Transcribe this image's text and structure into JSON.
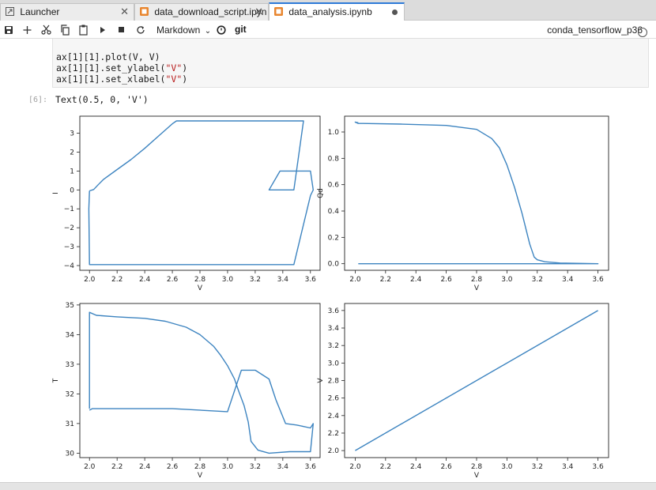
{
  "tabs": [
    {
      "label": "Launcher",
      "icon": "launcher-icon",
      "active": false
    },
    {
      "label": "data_download_script.ipyn",
      "icon": "notebook-icon",
      "active": false
    },
    {
      "label": "data_analysis.ipynb",
      "icon": "notebook-icon",
      "active": true
    }
  ],
  "toolbar": {
    "cell_type": "Markdown",
    "git_label": "git",
    "kernel": "conda_tensorflow_p36"
  },
  "code_lines": [
    {
      "pre": "ax[1][1].plot(V, V)",
      "str": "",
      "post": ""
    },
    {
      "pre": "ax[1][1].set_ylabel(",
      "str": "\"V\"",
      "post": ")"
    },
    {
      "pre": "ax[1][1].set_xlabel(",
      "str": "\"V\"",
      "post": ")"
    }
  ],
  "output": {
    "prompt": "[6]:",
    "text": "Text(0.5, 0, 'V')"
  },
  "colors": {
    "line": "#3d84c0",
    "accent": "#2e7ad8",
    "notebook_icon": "#e8862f"
  },
  "chart_data": [
    {
      "type": "line",
      "xlabel": "V",
      "ylabel": "I",
      "xlim": [
        1.93,
        3.67
      ],
      "ylim": [
        -4.25,
        3.9
      ],
      "xticks": [
        2.0,
        2.2,
        2.4,
        2.6,
        2.8,
        3.0,
        3.2,
        3.4,
        3.6
      ],
      "yticks": [
        -4,
        -3,
        -2,
        -1,
        0,
        1,
        2,
        3
      ],
      "series": [
        {
          "x": [
            2.0,
            2.03,
            2.06,
            2.1,
            2.2,
            2.3,
            2.4,
            2.5,
            2.6,
            2.63,
            3.55,
            3.48,
            3.3,
            3.38,
            3.6,
            3.62,
            3.6,
            3.48,
            2.0,
            1.995,
            2.0
          ],
          "y": [
            -0.05,
            0.02,
            0.25,
            0.55,
            1.08,
            1.6,
            2.2,
            2.85,
            3.5,
            3.65,
            3.65,
            0.0,
            0.0,
            1.0,
            1.0,
            0.0,
            -0.3,
            -3.95,
            -3.95,
            -1.0,
            -0.05
          ]
        }
      ]
    },
    {
      "type": "line",
      "xlabel": "V",
      "ylabel": "Qd",
      "xlim": [
        1.93,
        3.67
      ],
      "ylim": [
        -0.05,
        1.12
      ],
      "xticks": [
        2.0,
        2.2,
        2.4,
        2.6,
        2.8,
        3.0,
        3.2,
        3.4,
        3.6
      ],
      "yticks": [
        0.0,
        0.2,
        0.4,
        0.6,
        0.8,
        1.0
      ],
      "series": [
        {
          "x": [
            2.02,
            2.0,
            2.02,
            2.05,
            2.3,
            2.6,
            2.8,
            2.9,
            2.95,
            3.0,
            3.05,
            3.1,
            3.15,
            3.18,
            3.2,
            3.25,
            3.35,
            3.5,
            3.6,
            3.4,
            2.02
          ],
          "y": [
            1.07,
            1.075,
            1.065,
            1.065,
            1.06,
            1.05,
            1.02,
            0.95,
            0.88,
            0.75,
            0.58,
            0.38,
            0.15,
            0.05,
            0.03,
            0.015,
            0.005,
            0.002,
            0.0,
            0.0,
            0.0
          ]
        }
      ]
    },
    {
      "type": "line",
      "xlabel": "V",
      "ylabel": "T",
      "xlim": [
        1.93,
        3.67
      ],
      "ylim": [
        29.85,
        35.05
      ],
      "xticks": [
        2.0,
        2.2,
        2.4,
        2.6,
        2.8,
        3.0,
        3.2,
        3.4,
        3.6
      ],
      "yticks": [
        30,
        31,
        32,
        33,
        34,
        35
      ],
      "series": [
        {
          "x": [
            2.0,
            2.0,
            2.05,
            2.2,
            2.4,
            2.55,
            2.7,
            2.8,
            2.9,
            2.95,
            3.0,
            3.05,
            3.08,
            3.12,
            3.15,
            3.17,
            3.22,
            3.3,
            3.45,
            3.6,
            3.62,
            3.6,
            3.5,
            3.42,
            3.35,
            3.3,
            3.2,
            3.1,
            3.0,
            2.6,
            2.2,
            2.02,
            2.0
          ],
          "y": [
            31.5,
            34.75,
            34.65,
            34.6,
            34.55,
            34.45,
            34.25,
            34.0,
            33.6,
            33.3,
            32.95,
            32.5,
            32.1,
            31.6,
            31.05,
            30.4,
            30.1,
            30.0,
            30.05,
            30.05,
            31.0,
            30.85,
            30.95,
            31.0,
            31.8,
            32.5,
            32.8,
            32.8,
            31.4,
            31.5,
            31.5,
            31.5,
            31.45
          ]
        }
      ]
    },
    {
      "type": "line",
      "xlabel": "V",
      "ylabel": "V",
      "xlim": [
        1.93,
        3.67
      ],
      "ylim": [
        1.92,
        3.68
      ],
      "xticks": [
        2.0,
        2.2,
        2.4,
        2.6,
        2.8,
        3.0,
        3.2,
        3.4,
        3.6
      ],
      "yticks": [
        2.0,
        2.2,
        2.4,
        2.6,
        2.8,
        3.0,
        3.2,
        3.4,
        3.6
      ],
      "series": [
        {
          "x": [
            2.0,
            3.6
          ],
          "y": [
            2.0,
            3.6
          ]
        }
      ]
    }
  ]
}
